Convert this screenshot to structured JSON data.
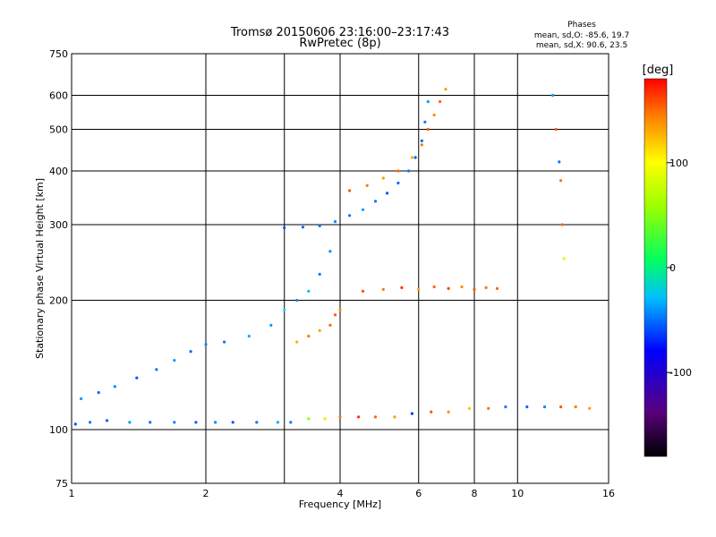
{
  "chart_data": {
    "type": "scatter",
    "title": "Tromsø 20150606 23:16:00–23:17:43",
    "subtitle": "RwPretec (8p)",
    "xlabel": "Frequency [MHz]",
    "ylabel": "Stationary phase Virtual Height [km]",
    "x_scale": "log",
    "y_scale": "log",
    "xlim": [
      1,
      16
    ],
    "ylim": [
      75,
      750
    ],
    "x_ticks": [
      1,
      2,
      4,
      6,
      8,
      10,
      16
    ],
    "x_grid": [
      2,
      3,
      4,
      6,
      8,
      10
    ],
    "y_ticks": [
      75,
      100,
      200,
      300,
      400,
      500,
      600,
      750
    ],
    "y_grid": [
      100,
      200,
      300,
      400,
      500,
      600
    ],
    "grid": true,
    "phase_box": {
      "heading": "Phases",
      "line_o": "mean, sd,O: -85.6, 19.7",
      "line_x": "mean, sd,X: 90.6, 23.5"
    },
    "colorbar": {
      "label": "[deg]",
      "range": [
        -180,
        180
      ],
      "ticks": [
        100,
        0,
        -100
      ],
      "tick_labels": [
        "100",
        "0",
        "-100"
      ],
      "colormap": "rainbow"
    },
    "series": [
      {
        "points": [
          [
            1.02,
            103,
            -120
          ],
          [
            1.1,
            104,
            -110
          ],
          [
            1.2,
            105,
            -115
          ],
          [
            1.35,
            104,
            -100
          ],
          [
            1.5,
            104,
            -112
          ],
          [
            1.7,
            104,
            -108
          ],
          [
            1.9,
            104,
            -118
          ],
          [
            2.1,
            104,
            -105
          ],
          [
            2.3,
            104,
            -120
          ],
          [
            2.6,
            104,
            -110
          ],
          [
            2.9,
            104,
            -95
          ],
          [
            3.1,
            104,
            -110
          ],
          [
            3.4,
            106,
            40
          ],
          [
            3.7,
            106,
            80
          ],
          [
            4.0,
            107,
            110
          ],
          [
            4.4,
            107,
            130
          ],
          [
            4.8,
            107,
            115
          ],
          [
            5.3,
            107,
            100
          ],
          [
            5.8,
            109,
            -130
          ],
          [
            6.4,
            110,
            120
          ],
          [
            7.0,
            110,
            105
          ],
          [
            7.8,
            112,
            90
          ],
          [
            8.6,
            112,
            110
          ],
          [
            9.4,
            113,
            -110
          ],
          [
            10.5,
            113,
            -115
          ],
          [
            11.5,
            113,
            -105
          ],
          [
            12.5,
            113,
            120
          ],
          [
            13.5,
            113,
            110
          ],
          [
            14.5,
            112,
            100
          ]
        ]
      },
      {
        "points": [
          [
            1.05,
            118,
            -100
          ],
          [
            1.15,
            122,
            -115
          ],
          [
            1.25,
            126,
            -105
          ],
          [
            1.4,
            132,
            -120
          ],
          [
            1.55,
            138,
            -110
          ],
          [
            1.7,
            145,
            -100
          ],
          [
            1.85,
            152,
            -115
          ],
          [
            2.0,
            158,
            -105
          ],
          [
            2.2,
            160,
            -110
          ],
          [
            2.5,
            165,
            -95
          ],
          [
            2.8,
            175,
            -100
          ],
          [
            3.0,
            190,
            -80
          ],
          [
            3.2,
            200,
            -105
          ],
          [
            3.4,
            210,
            -90
          ],
          [
            3.6,
            230,
            -110
          ],
          [
            3.8,
            260,
            -105
          ]
        ]
      },
      {
        "points": [
          [
            3.0,
            295,
            -120
          ],
          [
            3.3,
            296,
            -115
          ],
          [
            3.6,
            298,
            -110
          ],
          [
            3.9,
            305,
            -105
          ],
          [
            4.2,
            315,
            -110
          ],
          [
            4.5,
            325,
            -100
          ],
          [
            4.8,
            340,
            -110
          ],
          [
            5.1,
            355,
            -120
          ],
          [
            5.4,
            375,
            -115
          ],
          [
            5.7,
            400,
            -110
          ],
          [
            5.9,
            430,
            -120
          ],
          [
            6.1,
            470,
            -115
          ],
          [
            6.2,
            520,
            -110
          ],
          [
            6.3,
            580,
            -100
          ]
        ]
      },
      {
        "points": [
          [
            4.2,
            360,
            120
          ],
          [
            4.6,
            370,
            110
          ],
          [
            5.0,
            385,
            100
          ],
          [
            5.4,
            400,
            115
          ],
          [
            5.8,
            430,
            95
          ],
          [
            6.1,
            460,
            110
          ],
          [
            6.3,
            500,
            120
          ],
          [
            6.5,
            540,
            105
          ],
          [
            6.7,
            580,
            115
          ],
          [
            6.9,
            620,
            100
          ]
        ]
      },
      {
        "points": [
          [
            3.2,
            160,
            95
          ],
          [
            3.4,
            165,
            110
          ],
          [
            3.6,
            170,
            100
          ],
          [
            3.8,
            175,
            115
          ],
          [
            3.9,
            185,
            120
          ],
          [
            4.0,
            190,
            105
          ]
        ]
      },
      {
        "points": [
          [
            4.5,
            210,
            120
          ],
          [
            5.0,
            212,
            110
          ],
          [
            5.5,
            214,
            130
          ],
          [
            6.0,
            212,
            100
          ],
          [
            6.5,
            215,
            115
          ],
          [
            7.0,
            213,
            125
          ],
          [
            7.5,
            215,
            105
          ],
          [
            8.0,
            212,
            120
          ],
          [
            8.5,
            214,
            110
          ],
          [
            9.0,
            213,
            115
          ]
        ]
      },
      {
        "points": [
          [
            12.0,
            600,
            -100
          ],
          [
            12.2,
            500,
            120
          ],
          [
            12.4,
            420,
            -110
          ],
          [
            12.5,
            380,
            110
          ],
          [
            12.6,
            300,
            115
          ],
          [
            12.7,
            250,
            60
          ]
        ]
      }
    ]
  }
}
